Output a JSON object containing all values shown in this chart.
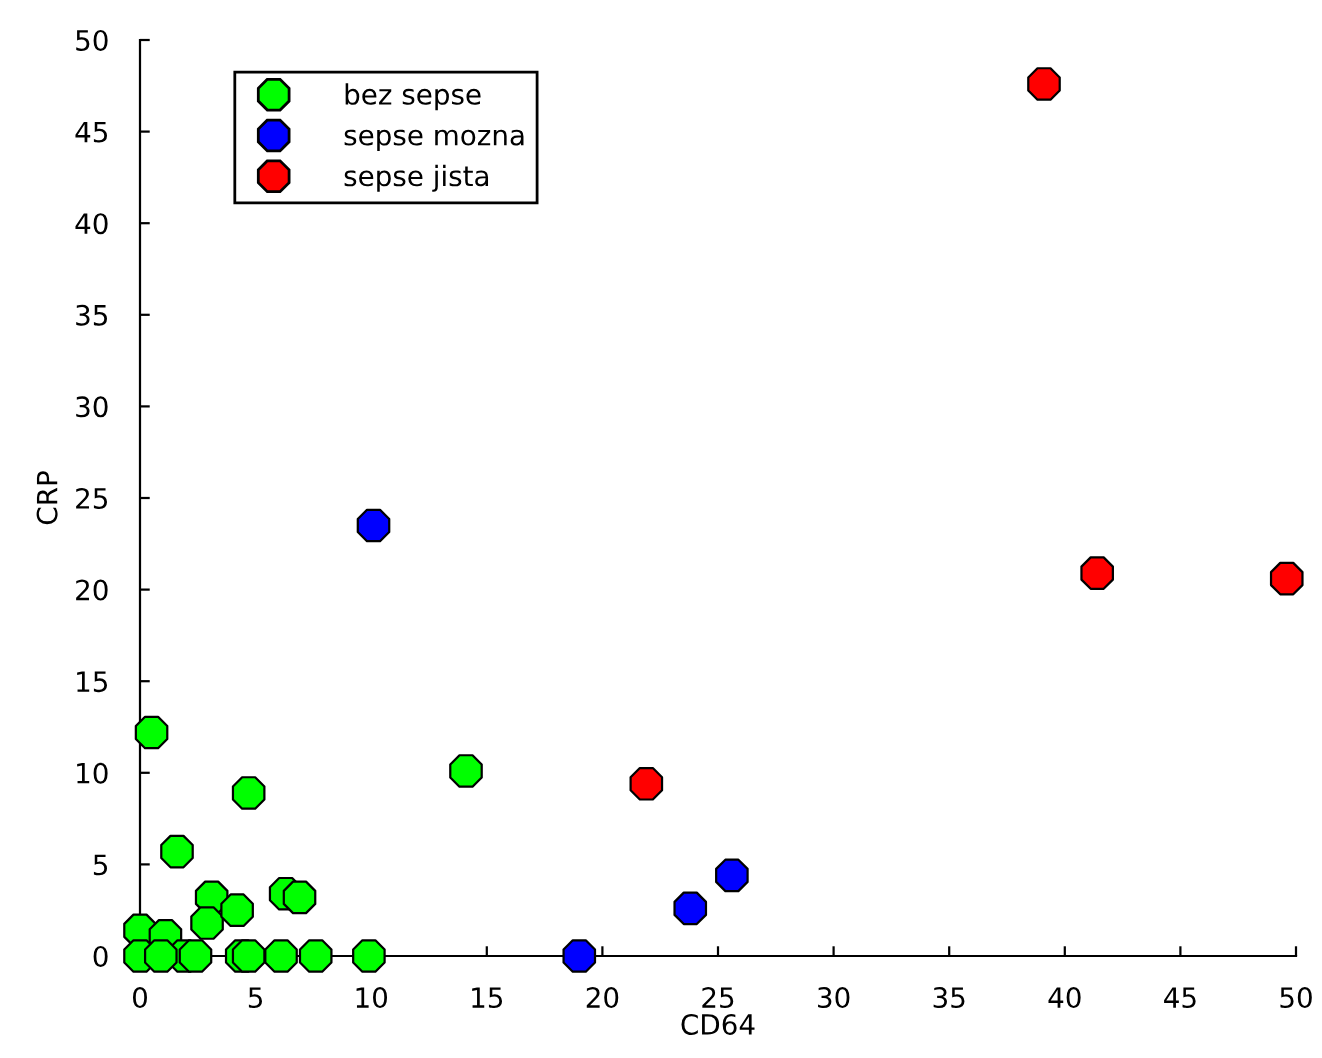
{
  "chart_data": {
    "type": "scatter",
    "xlabel": "CD64",
    "ylabel": "CRP",
    "xlim": [
      0,
      50
    ],
    "ylim": [
      0,
      50
    ],
    "xticks": [
      0,
      5,
      10,
      15,
      20,
      25,
      30,
      35,
      40,
      45,
      50
    ],
    "yticks": [
      0,
      5,
      10,
      15,
      20,
      25,
      30,
      35,
      40,
      45,
      50
    ],
    "legend": "top left",
    "grid": false,
    "marker": "circle",
    "series": [
      {
        "name": "bez sepse",
        "color": "#00ff00",
        "x": [
          0.5,
          4.7,
          14.1,
          1.6,
          3.1,
          2.9,
          4.2,
          6.3,
          6.9,
          0,
          1.1,
          1.9,
          2.4,
          4.4,
          4.7,
          6.1,
          7.6,
          9.9,
          0,
          0.9
        ],
        "values": [
          12.2,
          8.9,
          10.1,
          5.7,
          3.2,
          1.8,
          2.5,
          3.4,
          3.2,
          1.4,
          1.1,
          0,
          0,
          0,
          0,
          0,
          0,
          0,
          0,
          0
        ]
      },
      {
        "name": "sepse mozna",
        "color": "#0000ff",
        "x": [
          10.1,
          19,
          23.8,
          25.6
        ],
        "values": [
          23.5,
          0,
          2.6,
          4.4
        ]
      },
      {
        "name": "sepse jista",
        "color": "#ff0000",
        "x": [
          39.1,
          41.4,
          49.6,
          21.9
        ],
        "values": [
          47.6,
          20.9,
          20.6,
          9.4
        ]
      }
    ]
  }
}
